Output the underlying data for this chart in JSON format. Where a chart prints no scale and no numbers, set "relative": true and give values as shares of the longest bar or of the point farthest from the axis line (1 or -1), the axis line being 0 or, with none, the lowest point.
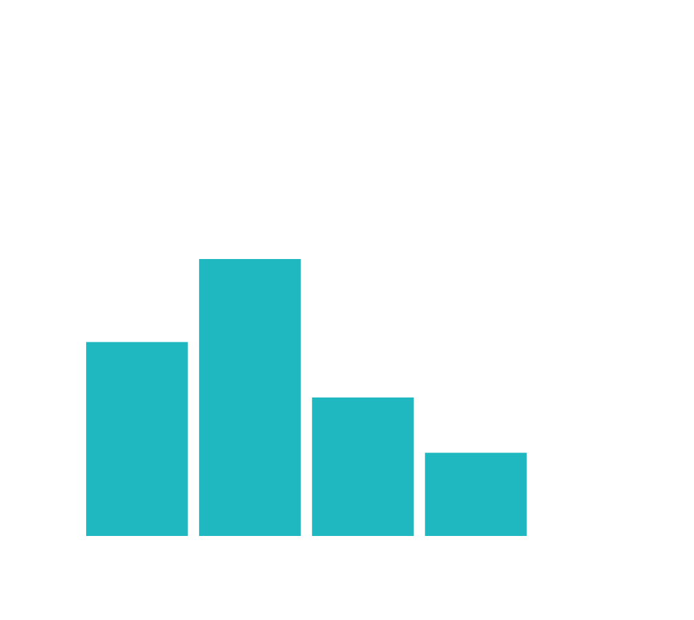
{
  "chart_data": {
    "type": "bar",
    "relative": true,
    "categories": [
      null,
      null,
      null,
      null
    ],
    "values": [
      0.7,
      1,
      0.5,
      0.3
    ],
    "color": "#1fb8c1",
    "grid": false,
    "legend": false
  }
}
